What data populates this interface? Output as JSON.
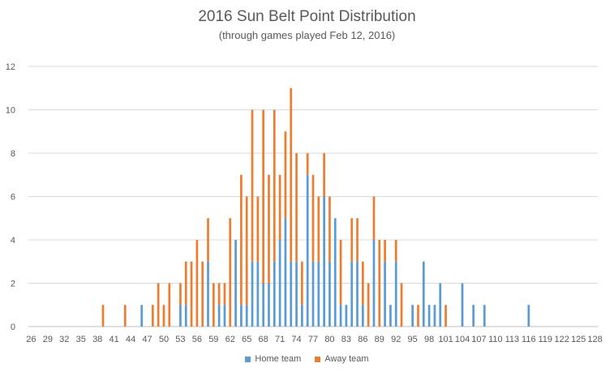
{
  "chart_data": {
    "type": "bar",
    "stacked": true,
    "title": "2016 Sun Belt Point Distribution",
    "subtitle": "(through games played Feb 12, 2016)",
    "xlabel": "",
    "ylabel": "",
    "ylim": [
      0,
      12
    ],
    "yticks": [
      0,
      2,
      4,
      6,
      8,
      10,
      12
    ],
    "grid": true,
    "legend_position": "bottom",
    "x_min": 26,
    "x_max": 128,
    "x_tick_labels": [
      "26",
      "29",
      "32",
      "35",
      "38",
      "41",
      "44",
      "47",
      "50",
      "53",
      "56",
      "59",
      "62",
      "65",
      "68",
      "71",
      "74",
      "77",
      "80",
      "83",
      "86",
      "89",
      "92",
      "95",
      "98",
      "101",
      "104",
      "107",
      "110",
      "113",
      "116",
      "119",
      "122",
      "125",
      "128"
    ],
    "series": [
      {
        "name": "Home team",
        "color": "#5B9BD5",
        "points": [
          [
            46,
            1
          ],
          [
            53,
            1
          ],
          [
            54,
            1
          ],
          [
            58,
            3
          ],
          [
            60,
            1
          ],
          [
            61,
            1
          ],
          [
            63,
            4
          ],
          [
            64,
            1
          ],
          [
            65,
            1
          ],
          [
            66,
            3
          ],
          [
            67,
            3
          ],
          [
            68,
            2
          ],
          [
            69,
            2
          ],
          [
            70,
            3
          ],
          [
            71,
            4
          ],
          [
            72,
            5
          ],
          [
            73,
            3
          ],
          [
            74,
            3
          ],
          [
            75,
            1
          ],
          [
            76,
            7
          ],
          [
            77,
            3
          ],
          [
            78,
            3
          ],
          [
            79,
            6
          ],
          [
            80,
            3
          ],
          [
            81,
            5
          ],
          [
            82,
            1
          ],
          [
            83,
            1
          ],
          [
            84,
            3
          ],
          [
            85,
            3
          ],
          [
            86,
            1
          ],
          [
            88,
            4
          ],
          [
            90,
            3
          ],
          [
            91,
            1
          ],
          [
            92,
            3
          ],
          [
            95,
            1
          ],
          [
            97,
            3
          ],
          [
            98,
            1
          ],
          [
            99,
            1
          ],
          [
            100,
            2
          ],
          [
            104,
            2
          ],
          [
            106,
            1
          ],
          [
            108,
            1
          ],
          [
            116,
            1
          ]
        ]
      },
      {
        "name": "Away team",
        "color": "#ED7D31",
        "points": [
          [
            39,
            1
          ],
          [
            43,
            1
          ],
          [
            48,
            1
          ],
          [
            49,
            2
          ],
          [
            50,
            1
          ],
          [
            51,
            2
          ],
          [
            53,
            1
          ],
          [
            54,
            2
          ],
          [
            55,
            3
          ],
          [
            56,
            4
          ],
          [
            57,
            3
          ],
          [
            58,
            2
          ],
          [
            59,
            2
          ],
          [
            60,
            1
          ],
          [
            61,
            1
          ],
          [
            62,
            5
          ],
          [
            63,
            0
          ],
          [
            64,
            6
          ],
          [
            65,
            5
          ],
          [
            66,
            7
          ],
          [
            67,
            3
          ],
          [
            68,
            8
          ],
          [
            69,
            5
          ],
          [
            70,
            7
          ],
          [
            71,
            3
          ],
          [
            72,
            4
          ],
          [
            73,
            8
          ],
          [
            74,
            5
          ],
          [
            75,
            2
          ],
          [
            76,
            1
          ],
          [
            77,
            4
          ],
          [
            78,
            3
          ],
          [
            79,
            2
          ],
          [
            80,
            3
          ],
          [
            81,
            0
          ],
          [
            82,
            3
          ],
          [
            84,
            2
          ],
          [
            85,
            2
          ],
          [
            86,
            2
          ],
          [
            87,
            2
          ],
          [
            88,
            2
          ],
          [
            89,
            4
          ],
          [
            90,
            1
          ],
          [
            92,
            1
          ],
          [
            93,
            2
          ],
          [
            96,
            1
          ],
          [
            101,
            1
          ]
        ]
      }
    ]
  }
}
